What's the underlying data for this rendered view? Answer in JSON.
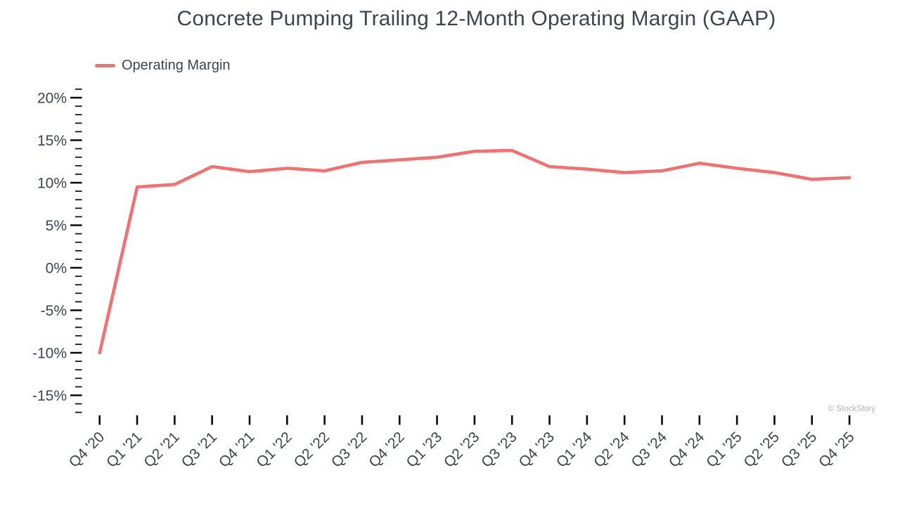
{
  "chart": {
    "title": "Concrete Pumping Trailing 12-Month Operating Margin (GAAP)",
    "watermark": "© StockStory",
    "legend": {
      "label": "Operating Margin",
      "color": "#f76e6e"
    }
  },
  "chart_data": {
    "type": "line",
    "title": "Concrete Pumping Trailing 12-Month Operating Margin (GAAP)",
    "xlabel": "",
    "ylabel": "",
    "grid": false,
    "legend_position": "top-left",
    "categories": [
      "Q4 '20",
      "Q1 '21",
      "Q2 '21",
      "Q3 '21",
      "Q4 '21",
      "Q1 '22",
      "Q2 '22",
      "Q3 '22",
      "Q4 '22",
      "Q1 '23",
      "Q2 '23",
      "Q3 '23",
      "Q4 '23",
      "Q1 '24",
      "Q2 '24",
      "Q3 '24",
      "Q4 '24",
      "Q1 '25",
      "Q2 '25",
      "Q3 '25",
      "Q4 '25"
    ],
    "series": [
      {
        "name": "Operating Margin",
        "unit": "%",
        "color": "#f76e6e",
        "values": [
          -10.0,
          9.5,
          9.8,
          11.9,
          11.3,
          11.7,
          11.4,
          12.4,
          12.7,
          13.0,
          13.7,
          13.8,
          11.9,
          11.6,
          11.2,
          11.4,
          12.3,
          11.7,
          11.2,
          10.4,
          10.6
        ]
      }
    ],
    "y_axis": {
      "min": -17,
      "max": 21,
      "minor_tick_step": 1,
      "major_ticks": [
        {
          "value": 20,
          "label": "20%"
        },
        {
          "value": 15,
          "label": "15%"
        },
        {
          "value": 10,
          "label": "10%"
        },
        {
          "value": 5,
          "label": "5%"
        },
        {
          "value": 0,
          "label": "0%"
        },
        {
          "value": -5,
          "label": "-5%"
        },
        {
          "value": -10,
          "label": "-10%"
        },
        {
          "value": -15,
          "label": "-15%"
        }
      ]
    }
  }
}
